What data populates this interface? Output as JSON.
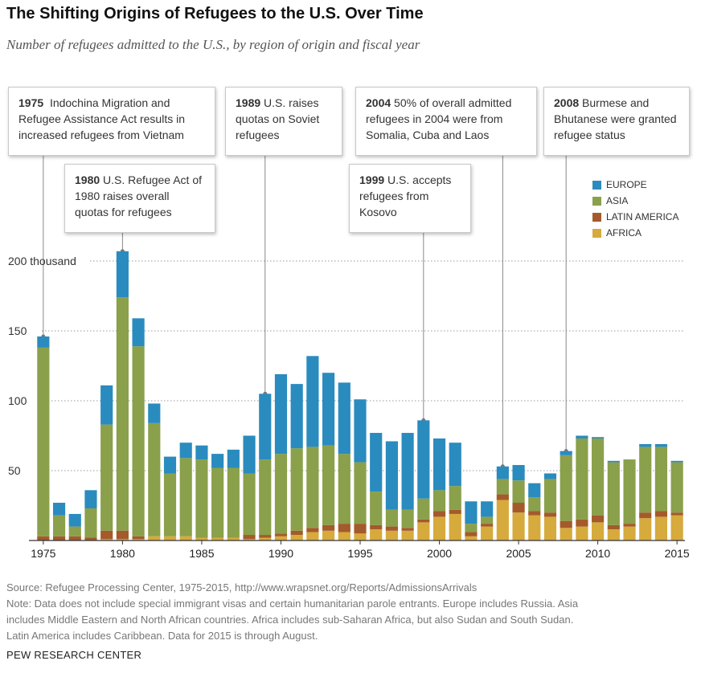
{
  "title": "The Shifting Origins of Refugees to the U.S. Over Time",
  "subtitle": "Number of refugees admitted to the U.S., by region of origin and fiscal year",
  "colors": {
    "europe": "#2a8bbf",
    "asia": "#8aa04b",
    "latin_america": "#a45a2b",
    "africa": "#d6aa3c"
  },
  "legend": [
    {
      "label": "EUROPE",
      "color": "#2a8bbf"
    },
    {
      "label": "ASIA",
      "color": "#8aa04b"
    },
    {
      "label": "LATIN AMERICA",
      "color": "#a45a2b"
    },
    {
      "label": "AFRICA",
      "color": "#d6aa3c"
    }
  ],
  "callouts": [
    {
      "year": "1975",
      "text": "Indochina Migration and Refugee Assistance Act results in increased refugees from Vietnam"
    },
    {
      "year": "1980",
      "text": "U.S. Refugee Act of 1980 raises overall quotas for refugees"
    },
    {
      "year": "1989",
      "text": "U.S. raises quotas on Soviet refugees"
    },
    {
      "year": "1999",
      "text": "U.S. accepts refugees from Kosovo"
    },
    {
      "year": "2004",
      "text": "50% of overall admitted refugees in 2004 were from Somalia, Cuba and Laos"
    },
    {
      "year": "2008",
      "text": "Burmese and Bhutanese were granted refugee status"
    }
  ],
  "chart_data": {
    "type": "bar",
    "stacked": true,
    "x": [
      1975,
      1976,
      1977,
      1978,
      1979,
      1980,
      1981,
      1982,
      1983,
      1984,
      1985,
      1986,
      1987,
      1988,
      1989,
      1990,
      1991,
      1992,
      1993,
      1994,
      1995,
      1996,
      1997,
      1998,
      1999,
      2000,
      2001,
      2002,
      2003,
      2004,
      2005,
      2006,
      2007,
      2008,
      2009,
      2010,
      2011,
      2012,
      2013,
      2014,
      2015
    ],
    "series": [
      {
        "name": "AFRICA",
        "values": [
          0,
          0,
          0,
          0,
          1,
          1,
          1,
          3,
          3,
          3,
          2,
          2,
          2,
          1,
          2,
          3,
          4,
          6,
          7,
          6,
          5,
          8,
          7,
          7,
          13,
          17,
          19,
          3,
          10,
          29,
          20,
          18,
          17,
          9,
          10,
          13,
          8,
          10,
          16,
          17,
          18
        ]
      },
      {
        "name": "LATIN AMERICA",
        "values": [
          3,
          3,
          3,
          2,
          6,
          6,
          2,
          0,
          0,
          0,
          0,
          0,
          0,
          3,
          2,
          2,
          3,
          3,
          4,
          6,
          7,
          3,
          3,
          2,
          2,
          4,
          3,
          3,
          2,
          4,
          7,
          3,
          3,
          5,
          5,
          5,
          3,
          2,
          4,
          4,
          2
        ]
      },
      {
        "name": "ASIA",
        "values": [
          135,
          15,
          7,
          21,
          76,
          167,
          136,
          81,
          45,
          56,
          56,
          50,
          50,
          44,
          54,
          57,
          59,
          58,
          57,
          50,
          44,
          24,
          12,
          13,
          15,
          15,
          17,
          6,
          5,
          11,
          16,
          10,
          24,
          47,
          58,
          55,
          45,
          46,
          47,
          46,
          36
        ]
      },
      {
        "name": "EUROPE",
        "values": [
          8,
          9,
          9,
          13,
          28,
          33,
          20,
          14,
          12,
          11,
          10,
          10,
          13,
          27,
          47,
          57,
          46,
          65,
          52,
          51,
          45,
          42,
          49,
          55,
          56,
          37,
          31,
          16,
          11,
          9,
          11,
          10,
          4,
          3,
          2,
          1,
          1,
          0,
          2,
          2,
          1
        ]
      }
    ],
    "ylim": [
      0,
      200
    ],
    "yticks": [
      50,
      100,
      150,
      200
    ],
    "ytick_labels": [
      "50",
      "100",
      "150",
      "200 thousand"
    ],
    "xticks": [
      1975,
      1980,
      1985,
      1990,
      1995,
      2000,
      2005,
      2010,
      2015
    ],
    "annotated_years": [
      1975,
      1980,
      1989,
      1999,
      2004,
      2008
    ],
    "grid": true,
    "legend_position": "top-right"
  },
  "footnotes": [
    "Source: Refugee Processing Center, 1975-2015, http://www.wrapsnet.org/Reports/AdmissionsArrivals",
    "Note: Data does not include special immigrant visas and certain humanitarian parole entrants. Europe includes Russia. Asia",
    "includes Middle Eastern and North African countries. Africa includes sub-Saharan Africa, but also Sudan and South Sudan.",
    "Latin America includes Caribbean. Data for 2015 is through August."
  ],
  "brand": "PEW RESEARCH CENTER"
}
